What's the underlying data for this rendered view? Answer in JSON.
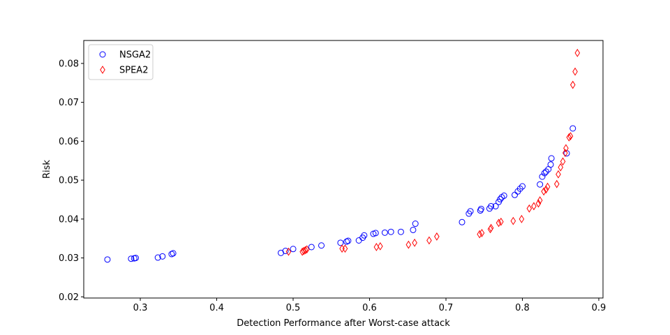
{
  "chart_data": {
    "type": "scatter",
    "title": "",
    "xlabel": "Detection Performance after Worst-case attack",
    "ylabel": "Risk",
    "xlim": [
      0.226,
      0.9055
    ],
    "ylim": [
      0.0197,
      0.0859
    ],
    "xticks": [
      0.3,
      0.4,
      0.5,
      0.6,
      0.7,
      0.8,
      0.9
    ],
    "xtick_labels": [
      "0.3",
      "0.4",
      "0.5",
      "0.6",
      "0.7",
      "0.8",
      "0.9"
    ],
    "yticks": [
      0.02,
      0.03,
      0.04,
      0.05,
      0.06,
      0.07,
      0.08
    ],
    "ytick_labels": [
      "0.02",
      "0.03",
      "0.04",
      "0.05",
      "0.06",
      "0.07",
      "0.08"
    ],
    "grid": false,
    "legend": "top-left",
    "series": [
      {
        "name": "NSGA2",
        "marker": "circle",
        "color": "#0000ff",
        "points": [
          [
            0.257,
            0.0296
          ],
          [
            0.288,
            0.0298
          ],
          [
            0.292,
            0.0299
          ],
          [
            0.294,
            0.03
          ],
          [
            0.323,
            0.0301
          ],
          [
            0.329,
            0.0304
          ],
          [
            0.341,
            0.031
          ],
          [
            0.343,
            0.0312
          ],
          [
            0.484,
            0.0313
          ],
          [
            0.49,
            0.0318
          ],
          [
            0.5,
            0.0323
          ],
          [
            0.524,
            0.0328
          ],
          [
            0.537,
            0.0332
          ],
          [
            0.562,
            0.0339
          ],
          [
            0.57,
            0.0342
          ],
          [
            0.572,
            0.0344
          ],
          [
            0.586,
            0.0345
          ],
          [
            0.591,
            0.0352
          ],
          [
            0.593,
            0.0358
          ],
          [
            0.605,
            0.0362
          ],
          [
            0.608,
            0.0364
          ],
          [
            0.62,
            0.0365
          ],
          [
            0.628,
            0.0367
          ],
          [
            0.641,
            0.0367
          ],
          [
            0.657,
            0.0372
          ],
          [
            0.66,
            0.0388
          ],
          [
            0.721,
            0.0392
          ],
          [
            0.73,
            0.0414
          ],
          [
            0.732,
            0.042
          ],
          [
            0.745,
            0.0422
          ],
          [
            0.746,
            0.0426
          ],
          [
            0.757,
            0.0427
          ],
          [
            0.759,
            0.0433
          ],
          [
            0.765,
            0.0433
          ],
          [
            0.769,
            0.0444
          ],
          [
            0.771,
            0.0451
          ],
          [
            0.773,
            0.0456
          ],
          [
            0.776,
            0.046
          ],
          [
            0.79,
            0.0462
          ],
          [
            0.794,
            0.0471
          ],
          [
            0.797,
            0.0478
          ],
          [
            0.8,
            0.0484
          ],
          [
            0.823,
            0.0489
          ],
          [
            0.826,
            0.0509
          ],
          [
            0.829,
            0.0518
          ],
          [
            0.831,
            0.0522
          ],
          [
            0.834,
            0.0528
          ],
          [
            0.837,
            0.054
          ],
          [
            0.838,
            0.0556
          ],
          [
            0.858,
            0.0569
          ],
          [
            0.866,
            0.0633
          ]
        ]
      },
      {
        "name": "SPEA2",
        "marker": "thin-diamond",
        "color": "#ff0000",
        "points": [
          [
            0.494,
            0.0316
          ],
          [
            0.512,
            0.0316
          ],
          [
            0.514,
            0.0318
          ],
          [
            0.516,
            0.032
          ],
          [
            0.518,
            0.0322
          ],
          [
            0.564,
            0.0324
          ],
          [
            0.568,
            0.0324
          ],
          [
            0.609,
            0.0328
          ],
          [
            0.614,
            0.033
          ],
          [
            0.651,
            0.0334
          ],
          [
            0.659,
            0.0339
          ],
          [
            0.678,
            0.0345
          ],
          [
            0.688,
            0.0355
          ],
          [
            0.744,
            0.0361
          ],
          [
            0.747,
            0.0364
          ],
          [
            0.758,
            0.0374
          ],
          [
            0.759,
            0.0377
          ],
          [
            0.769,
            0.039
          ],
          [
            0.772,
            0.0393
          ],
          [
            0.788,
            0.0395
          ],
          [
            0.799,
            0.04
          ],
          [
            0.809,
            0.0427
          ],
          [
            0.815,
            0.0433
          ],
          [
            0.821,
            0.044
          ],
          [
            0.823,
            0.0448
          ],
          [
            0.828,
            0.0471
          ],
          [
            0.831,
            0.0476
          ],
          [
            0.833,
            0.0483
          ],
          [
            0.845,
            0.049
          ],
          [
            0.847,
            0.0515
          ],
          [
            0.85,
            0.0533
          ],
          [
            0.853,
            0.0548
          ],
          [
            0.856,
            0.057
          ],
          [
            0.857,
            0.0582
          ],
          [
            0.861,
            0.061
          ],
          [
            0.863,
            0.0613
          ],
          [
            0.866,
            0.0745
          ],
          [
            0.869,
            0.0779
          ],
          [
            0.872,
            0.0827
          ]
        ]
      }
    ]
  }
}
